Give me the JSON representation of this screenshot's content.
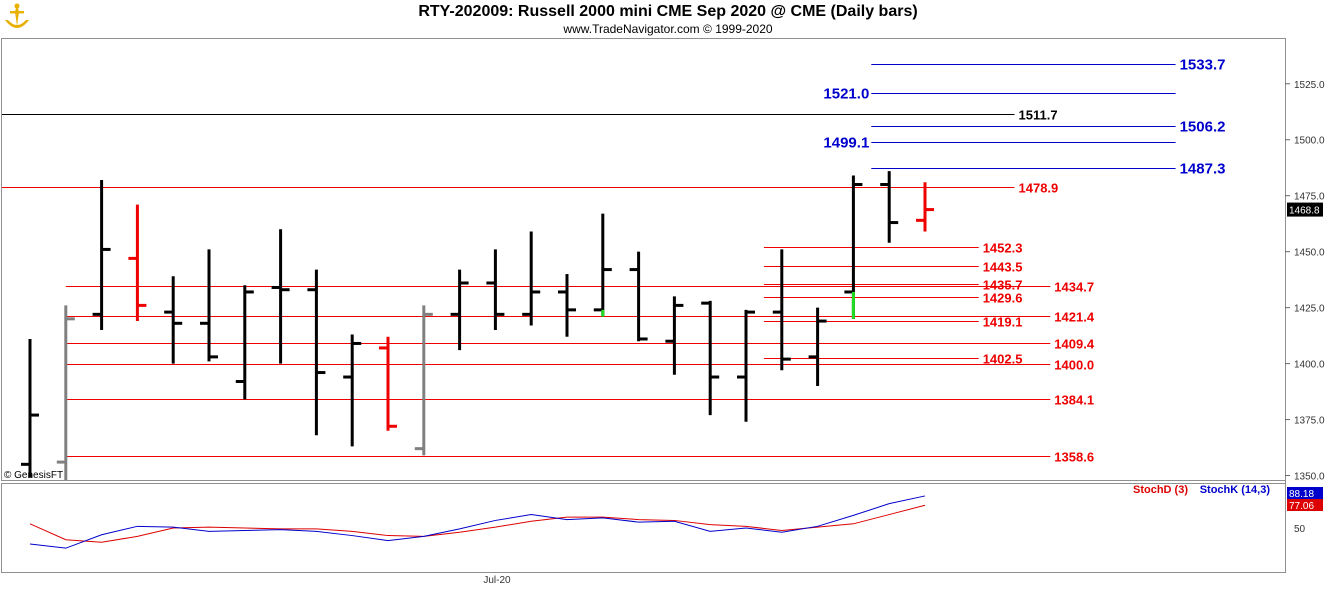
{
  "header": {
    "title": "RTY-202009:  Russell 2000 mini CME Sep 2020 @ CME  (Daily bars)",
    "subtitle": "www.TradeNavigator.com © 1999-2020",
    "watermark": "© GenesisFT"
  },
  "colors": {
    "bar": "#000000",
    "bar_red": "#ee0000",
    "bar_gray": "#808080",
    "bar_green": "#22dd22",
    "level_red": "#ee0000",
    "level_blue": "#0000cc",
    "level_black": "#000000",
    "stoch_d": "#dd0000",
    "stoch_k": "#0000cc",
    "last_price_bg": "#000000",
    "logo": "#e8b000"
  },
  "chart_data": [
    {
      "type": "ohlc",
      "name": "price",
      "ylim": [
        1348,
        1545
      ],
      "y_ticks": [
        "1350.0",
        "1375.0",
        "1400.0",
        "1425.0",
        "1450.0",
        "1475.0",
        "1500.0",
        "1525.0"
      ],
      "y_tick_values": [
        1350,
        1375,
        1400,
        1425,
        1450,
        1475,
        1500,
        1525
      ],
      "x_label": "Jul-20",
      "last_price": "1468.8",
      "last_price_value": 1468.8,
      "bars": [
        {
          "o": 1355,
          "h": 1411,
          "l": 1349,
          "c": 1377,
          "color": "bar"
        },
        {
          "o": 1356,
          "h": 1426,
          "l": 1348,
          "c": 1420,
          "color": "bar_gray"
        },
        {
          "o": 1422,
          "h": 1482,
          "l": 1415,
          "c": 1451,
          "color": "bar"
        },
        {
          "o": 1447,
          "h": 1471,
          "l": 1419,
          "c": 1426,
          "color": "bar_red"
        },
        {
          "o": 1423,
          "h": 1439,
          "l": 1400,
          "c": 1418,
          "color": "bar"
        },
        {
          "o": 1418,
          "h": 1451,
          "l": 1401,
          "c": 1403,
          "color": "bar"
        },
        {
          "o": 1392,
          "h": 1435,
          "l": 1384,
          "c": 1432,
          "color": "bar"
        },
        {
          "o": 1434,
          "h": 1460,
          "l": 1400,
          "c": 1433,
          "color": "bar"
        },
        {
          "o": 1433,
          "h": 1442,
          "l": 1368,
          "c": 1396,
          "color": "bar"
        },
        {
          "o": 1394,
          "h": 1413,
          "l": 1363,
          "c": 1409,
          "color": "bar"
        },
        {
          "o": 1407,
          "h": 1412,
          "l": 1370,
          "c": 1372,
          "color": "bar_red"
        },
        {
          "o": 1362,
          "h": 1426,
          "l": 1359,
          "c": 1422,
          "color": "bar_gray"
        },
        {
          "o": 1422,
          "h": 1442,
          "l": 1406,
          "c": 1436,
          "color": "bar"
        },
        {
          "o": 1436,
          "h": 1451,
          "l": 1415,
          "c": 1422,
          "color": "bar"
        },
        {
          "o": 1422,
          "h": 1459,
          "l": 1417,
          "c": 1432,
          "color": "bar"
        },
        {
          "o": 1432,
          "h": 1440,
          "l": 1412,
          "c": 1424,
          "color": "bar"
        },
        {
          "o": 1424,
          "h": 1467,
          "l": 1421,
          "c": 1442,
          "color": "bar",
          "green_tail": true
        },
        {
          "o": 1442,
          "h": 1450,
          "l": 1410,
          "c": 1411,
          "color": "bar"
        },
        {
          "o": 1410,
          "h": 1430,
          "l": 1395,
          "c": 1426,
          "color": "bar"
        },
        {
          "o": 1427,
          "h": 1428,
          "l": 1377,
          "c": 1394,
          "color": "bar"
        },
        {
          "o": 1394,
          "h": 1424,
          "l": 1374,
          "c": 1423,
          "color": "bar"
        },
        {
          "o": 1423,
          "h": 1451,
          "l": 1397,
          "c": 1402,
          "color": "bar"
        },
        {
          "o": 1403,
          "h": 1425,
          "l": 1390,
          "c": 1419,
          "color": "bar"
        },
        {
          "o": 1432,
          "h": 1484,
          "l": 1420,
          "c": 1480,
          "color": "bar",
          "green_tail": true
        },
        {
          "o": 1480,
          "h": 1486,
          "l": 1454,
          "c": 1463,
          "color": "bar"
        },
        {
          "o": 1464,
          "h": 1481,
          "l": 1459,
          "c": 1468.8,
          "color": "bar_red"
        }
      ],
      "levels": [
        {
          "label": "1533.7",
          "value": 1533.7,
          "color": "level_blue",
          "start": 23.5,
          "end": 32,
          "label_at": "end"
        },
        {
          "label": "1521.0",
          "value": 1521.0,
          "color": "level_blue",
          "start": 23.5,
          "end": 32,
          "label_at": "start"
        },
        {
          "label": "1511.7",
          "value": 1511.7,
          "color": "level_black",
          "start": -1,
          "end": 27.5,
          "label_at": "end"
        },
        {
          "label": "1506.2",
          "value": 1506.2,
          "color": "level_blue",
          "start": 23.5,
          "end": 32,
          "label_at": "end"
        },
        {
          "label": "1499.1",
          "value": 1499.1,
          "color": "level_blue",
          "start": 23.5,
          "end": 32,
          "label_at": "start"
        },
        {
          "label": "1487.3",
          "value": 1487.3,
          "color": "level_blue",
          "start": 23.5,
          "end": 32,
          "label_at": "end"
        },
        {
          "label": "1478.9",
          "value": 1478.9,
          "color": "level_red",
          "start": -1,
          "end": 27.5,
          "label_at": "end"
        },
        {
          "label": "1452.3",
          "value": 1452.3,
          "color": "level_red",
          "start": 20.5,
          "end": 26.5,
          "label_at": "end"
        },
        {
          "label": "1443.5",
          "value": 1443.5,
          "color": "level_red",
          "start": 20.5,
          "end": 26.5,
          "label_at": "end"
        },
        {
          "label": "1435.7",
          "value": 1435.7,
          "color": "level_red",
          "start": 20.5,
          "end": 26.5,
          "label_at": "end"
        },
        {
          "label": "1434.7",
          "value": 1434.7,
          "color": "level_red",
          "start": 1,
          "end": 28.5,
          "label_at": "end"
        },
        {
          "label": "1429.6",
          "value": 1429.6,
          "color": "level_red",
          "start": 20.5,
          "end": 26.5,
          "label_at": "end"
        },
        {
          "label": "1421.4",
          "value": 1421.4,
          "color": "level_red",
          "start": 1,
          "end": 28.5,
          "label_at": "end"
        },
        {
          "label": "1419.1",
          "value": 1419.1,
          "color": "level_red",
          "start": 20.5,
          "end": 26.5,
          "label_at": "end"
        },
        {
          "label": "1409.4",
          "value": 1409.4,
          "color": "level_red",
          "start": 1,
          "end": 28.5,
          "label_at": "end"
        },
        {
          "label": "1402.5",
          "value": 1402.5,
          "color": "level_red",
          "start": 20.5,
          "end": 26.5,
          "label_at": "end"
        },
        {
          "label": "1400.0",
          "value": 1400.0,
          "color": "level_red",
          "start": 1,
          "end": 28.5,
          "label_at": "end"
        },
        {
          "label": "1384.1",
          "value": 1384.1,
          "color": "level_red",
          "start": 1,
          "end": 28.5,
          "label_at": "end"
        },
        {
          "label": "1358.6",
          "value": 1358.6,
          "color": "level_red",
          "start": 1,
          "end": 28.5,
          "label_at": "end"
        }
      ]
    },
    {
      "type": "line",
      "name": "stochastic",
      "ylim": [
        0,
        100
      ],
      "y_ticks": [
        "50"
      ],
      "y_tick_values": [
        50
      ],
      "legend": [
        "StochD (3)",
        "StochK (14,3)"
      ],
      "last_values": [
        "88.18",
        "77.06"
      ],
      "series": [
        {
          "name": "StochD (3)",
          "color": "stoch_d",
          "x": [
            0,
            1,
            2,
            3,
            4,
            5,
            6,
            7,
            8,
            9,
            10,
            11,
            12,
            13,
            14,
            15,
            16,
            17,
            18,
            19,
            20,
            21,
            22,
            23,
            24,
            25
          ],
          "values": [
            55,
            36,
            33,
            40,
            50,
            51,
            50,
            49,
            49,
            46,
            41,
            40,
            45,
            51,
            58,
            63,
            63,
            60,
            59,
            54,
            52,
            47,
            51,
            55,
            66,
            77.06
          ]
        },
        {
          "name": "StochK (14,3)",
          "color": "stoch_k",
          "x": [
            0,
            1,
            2,
            3,
            4,
            5,
            6,
            7,
            8,
            9,
            10,
            11,
            12,
            13,
            14,
            15,
            16,
            17,
            18,
            19,
            20,
            21,
            22,
            23,
            24,
            25
          ],
          "values": [
            31,
            26,
            42,
            52,
            51,
            46,
            47,
            48,
            46,
            41,
            35,
            40,
            49,
            59,
            66,
            60,
            62,
            57,
            58,
            46,
            50,
            45,
            52,
            65,
            79,
            88.18
          ]
        }
      ]
    }
  ]
}
